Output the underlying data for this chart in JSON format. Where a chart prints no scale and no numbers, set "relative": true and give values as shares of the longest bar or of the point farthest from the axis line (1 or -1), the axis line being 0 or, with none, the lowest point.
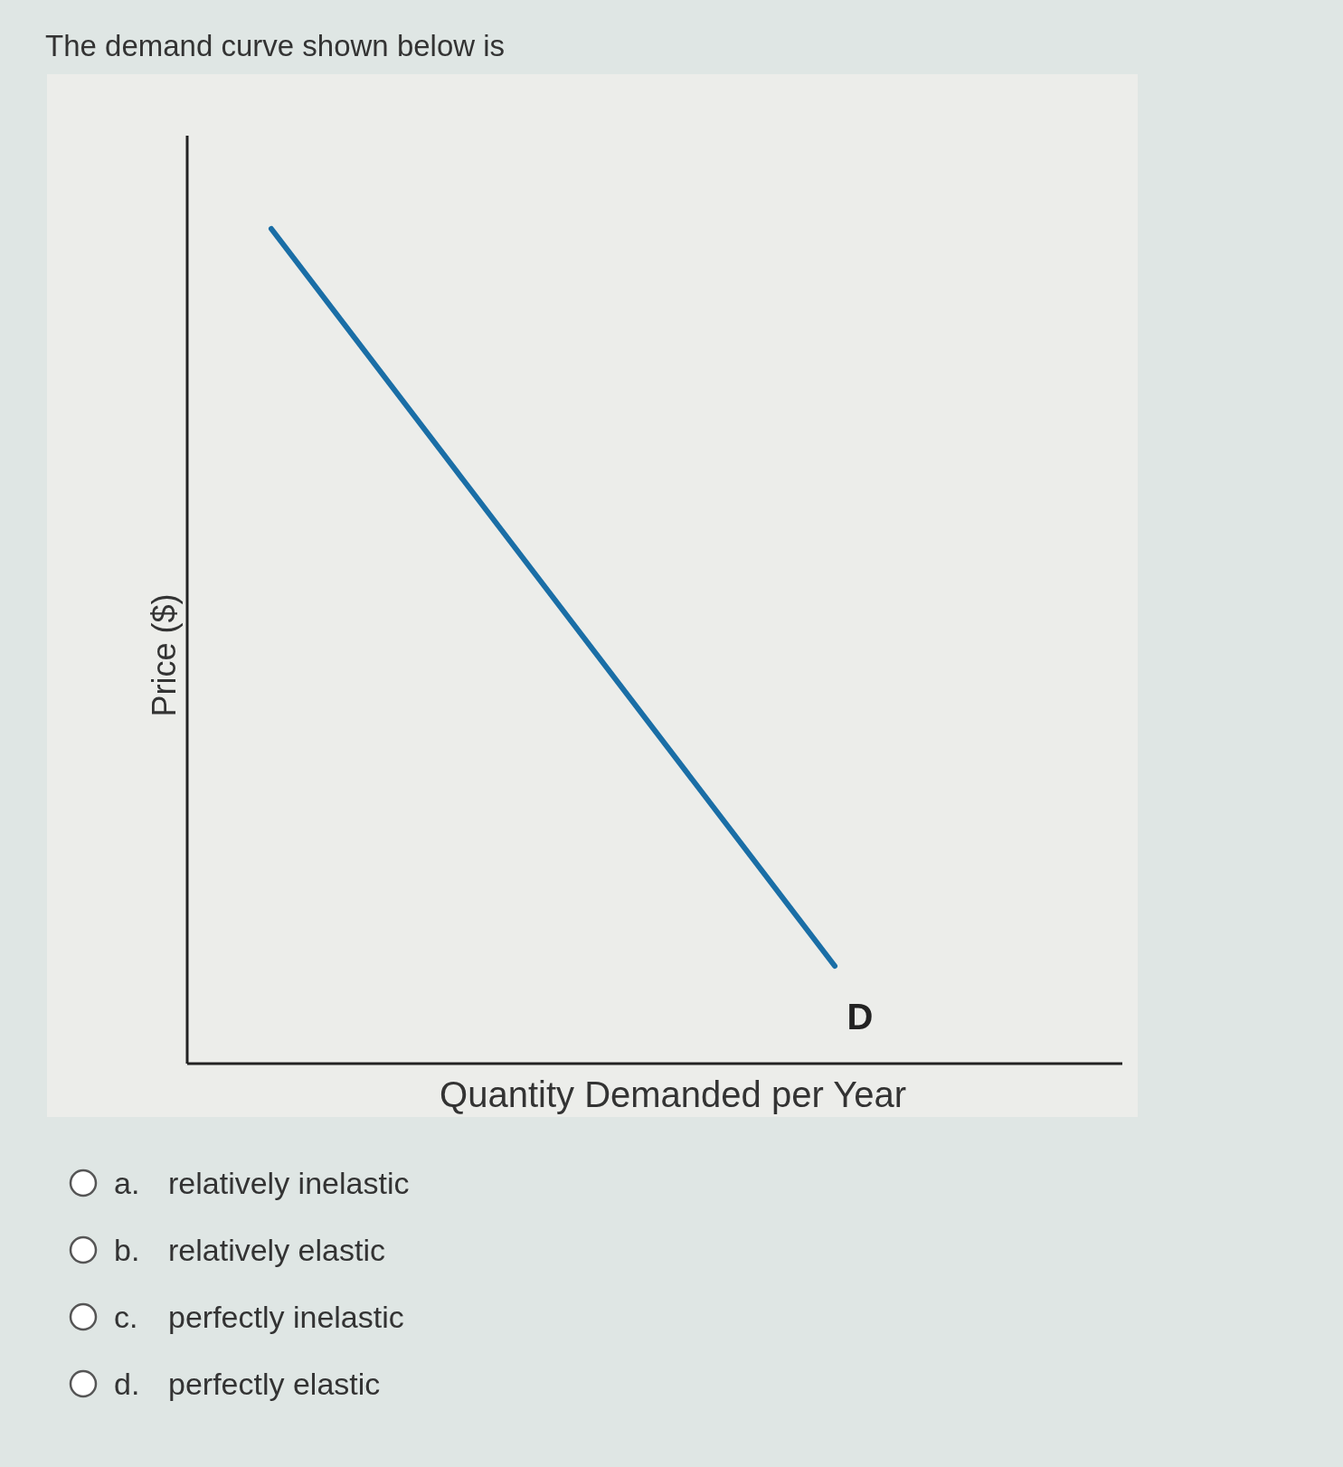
{
  "chart_data": {
    "type": "line",
    "title": "The demand curve shown below is",
    "xlabel": "Quantity Demanded per Year",
    "ylabel": "Price ($)",
    "relative": true,
    "categories": [
      null,
      null
    ],
    "tick_labels": false,
    "series": [
      {
        "color": "#1a6ea6",
        "values": [
          1,
          0.117
        ]
      }
    ],
    "annotations": [
      "D",
      "a. relatively inelastic",
      "b. relatively elastic",
      "c. perfectly inelastic",
      "d. perfectly elastic"
    ]
  }
}
